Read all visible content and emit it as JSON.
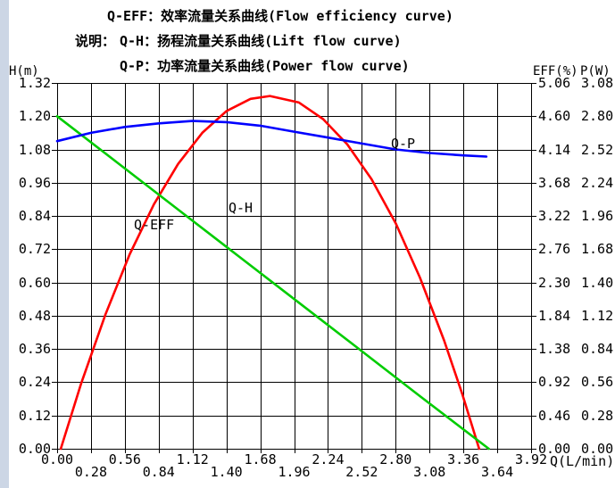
{
  "header": {
    "note_label": "说明：",
    "line1": "Q-EFF：效率流量关系曲线(Flow efficiency curve)",
    "line2": "Q-H：扬程流量关系曲线(Lift flow curve)",
    "line3": "Q-P：功率流量关系曲线(Power flow curve)"
  },
  "colors": {
    "grid": "#000000",
    "qeff": "#ff0000",
    "qh": "#00cc00",
    "qp": "#0000ff",
    "band": "#ccd6e5",
    "text": "#000000"
  },
  "chart_data": {
    "type": "line",
    "title": "",
    "grid": true,
    "x_axis": {
      "label": "Q(L/min)",
      "min": 0,
      "max": 3.92,
      "tick_step": 0.28,
      "ticks_row1": [
        "0.00",
        "0.56",
        "1.12",
        "1.68",
        "2.24",
        "2.80",
        "3.36",
        "3.92"
      ],
      "ticks_row2": [
        "0.28",
        "0.84",
        "1.40",
        "1.96",
        "2.52",
        "3.08",
        "3.64"
      ]
    },
    "y_axes": [
      {
        "id": "H",
        "label": "H(m)",
        "side": "left",
        "min": 0,
        "max": 1.32,
        "ticks": [
          "1.32",
          "1.20",
          "1.08",
          "0.96",
          "0.84",
          "0.72",
          "0.60",
          "0.48",
          "0.36",
          "0.24",
          "0.12",
          "0.00"
        ]
      },
      {
        "id": "EFF",
        "label": "EFF(%)",
        "side": "right",
        "min": 0,
        "max": 5.06,
        "ticks": [
          "5.06",
          "4.60",
          "4.14",
          "3.68",
          "3.22",
          "2.76",
          "2.30",
          "1.84",
          "1.38",
          "0.92",
          "0.46",
          "0.00"
        ]
      },
      {
        "id": "P",
        "label": "P(W)",
        "side": "right",
        "min": 0,
        "max": 3.08,
        "ticks": [
          "3.08",
          "2.80",
          "2.52",
          "2.24",
          "1.96",
          "1.68",
          "1.40",
          "1.12",
          "0.84",
          "0.56",
          "0.28",
          "0.00"
        ]
      }
    ],
    "series": [
      {
        "name": "Q-EFF",
        "axis": "EFF",
        "color_key": "qeff",
        "points": [
          [
            0.03,
            0
          ],
          [
            0.2,
            0.91
          ],
          [
            0.4,
            1.86
          ],
          [
            0.6,
            2.69
          ],
          [
            0.8,
            3.38
          ],
          [
            1.0,
            3.94
          ],
          [
            1.2,
            4.37
          ],
          [
            1.4,
            4.67
          ],
          [
            1.6,
            4.84
          ],
          [
            1.76,
            4.88
          ],
          [
            2.0,
            4.79
          ],
          [
            2.2,
            4.56
          ],
          [
            2.4,
            4.21
          ],
          [
            2.6,
            3.73
          ],
          [
            2.8,
            3.12
          ],
          [
            3.0,
            2.37
          ],
          [
            3.2,
            1.5
          ],
          [
            3.35,
            0.76
          ],
          [
            3.49,
            0
          ]
        ]
      },
      {
        "name": "Q-H",
        "axis": "H",
        "color_key": "qh",
        "points": [
          [
            0,
            1.2
          ],
          [
            0.5,
            1.032
          ],
          [
            1.0,
            0.863
          ],
          [
            1.5,
            0.695
          ],
          [
            2.0,
            0.527
          ],
          [
            2.5,
            0.359
          ],
          [
            3.0,
            0.19
          ],
          [
            3.57,
            0
          ]
        ]
      },
      {
        "name": "Q-P",
        "axis": "P",
        "color_key": "qp",
        "points": [
          [
            0,
            2.59
          ],
          [
            0.28,
            2.66
          ],
          [
            0.56,
            2.71
          ],
          [
            0.84,
            2.74
          ],
          [
            1.12,
            2.76
          ],
          [
            1.4,
            2.75
          ],
          [
            1.68,
            2.72
          ],
          [
            1.96,
            2.67
          ],
          [
            2.24,
            2.62
          ],
          [
            2.52,
            2.57
          ],
          [
            2.8,
            2.52
          ],
          [
            3.08,
            2.49
          ],
          [
            3.36,
            2.47
          ],
          [
            3.55,
            2.46
          ]
        ]
      }
    ],
    "annotations": [
      {
        "text": "Q-EFF",
        "axis": "EFF",
        "q": 0.635,
        "value": 3.18
      },
      {
        "text": "Q-H",
        "axis": "H",
        "q": 1.417,
        "value": 0.892
      },
      {
        "text": "Q-P",
        "axis": "P",
        "q": 2.761,
        "value": 2.622
      }
    ]
  }
}
